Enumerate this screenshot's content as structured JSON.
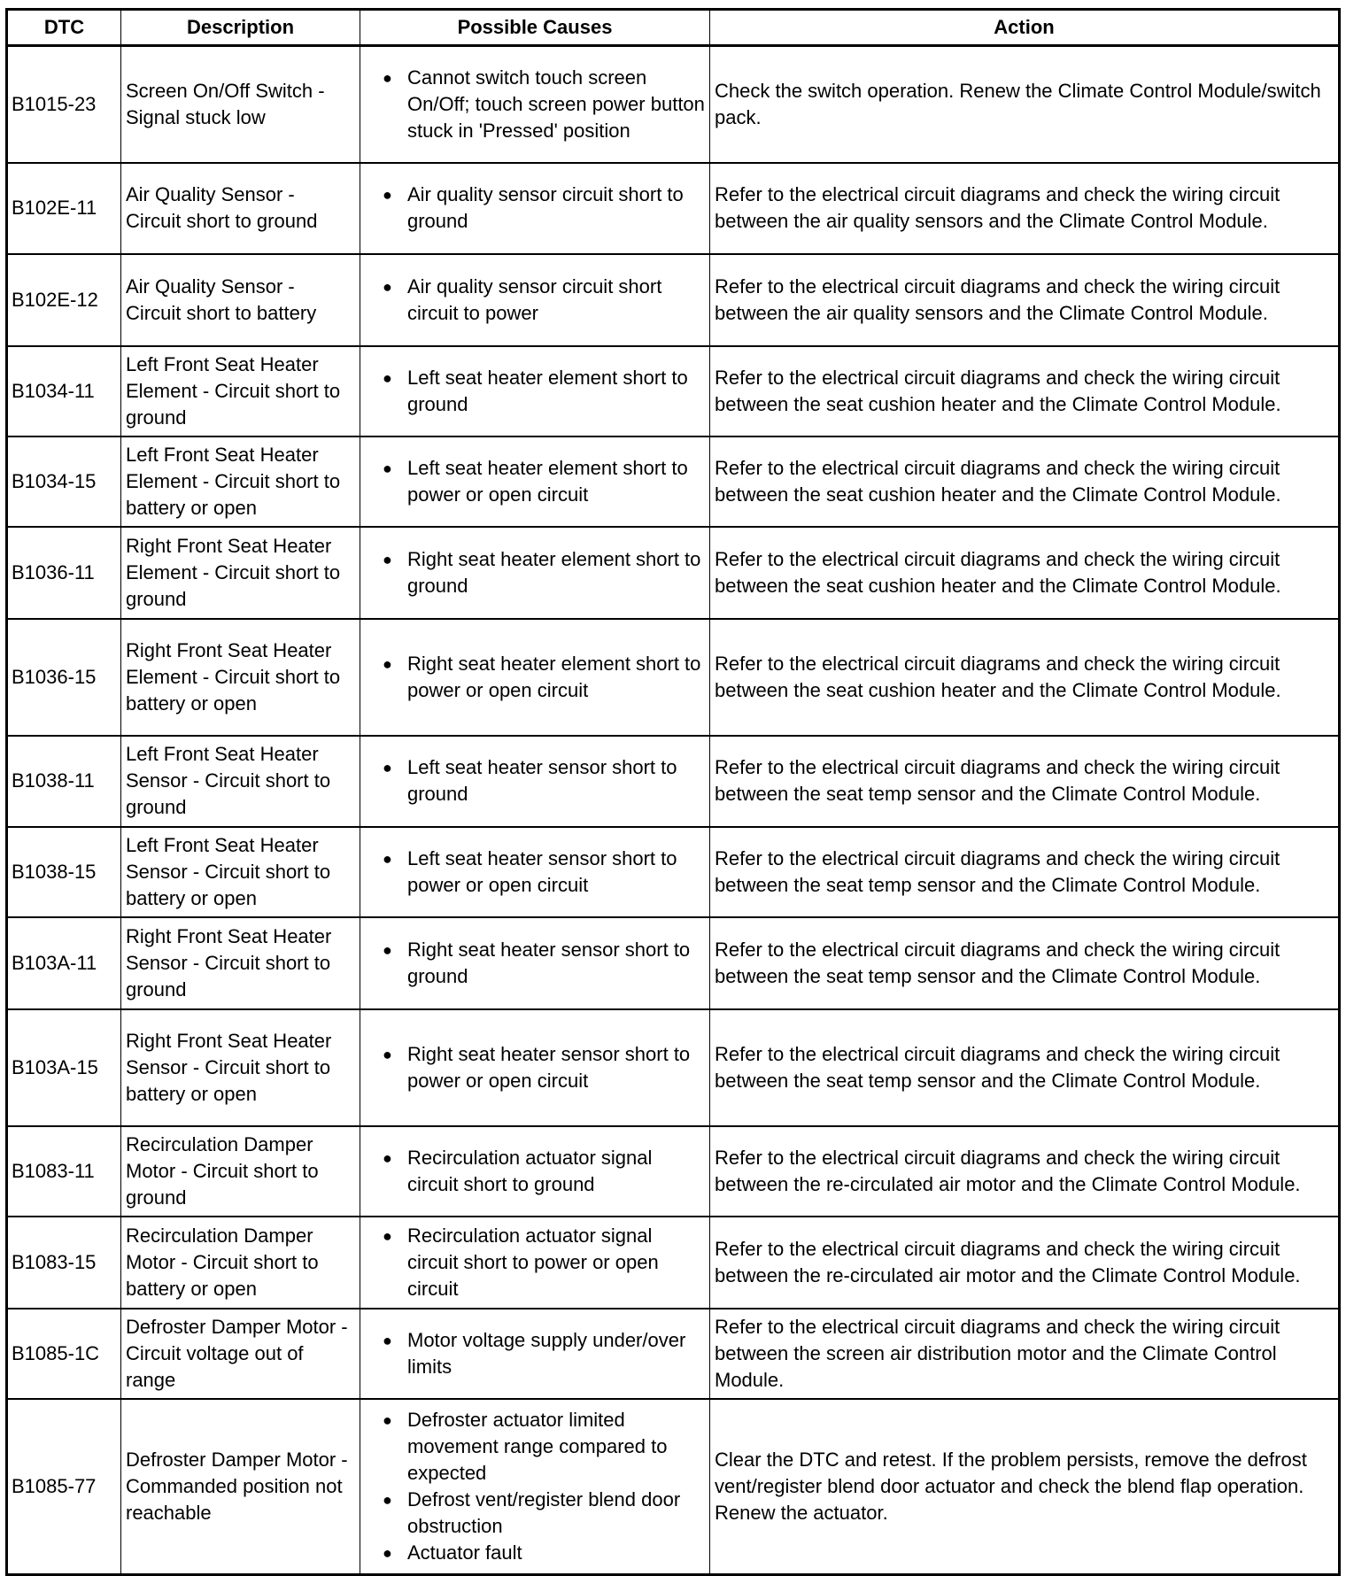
{
  "headers": [
    "DTC",
    "Description",
    "Possible Causes",
    "Action"
  ],
  "rows": [
    {
      "dtc": "B1015-23",
      "description": "Screen On/Off Switch - Signal stuck low",
      "causes": [
        "Cannot switch touch screen On/Off; touch screen power button stuck in 'Pressed' position"
      ],
      "action": "Check the switch operation. Renew the Climate Control Module/switch pack."
    },
    {
      "dtc": "B102E-11",
      "description": "Air Quality Sensor - Circuit short to ground",
      "causes": [
        "Air quality sensor circuit short to ground"
      ],
      "action": "Refer to the electrical circuit diagrams and check the wiring circuit between the air quality sensors and the Climate Control Module."
    },
    {
      "dtc": "B102E-12",
      "description": "Air Quality Sensor - Circuit short to battery",
      "causes": [
        "Air quality sensor circuit short circuit to power"
      ],
      "action": "Refer to the electrical circuit diagrams and check the wiring circuit between the air quality sensors and the Climate Control Module."
    },
    {
      "dtc": "B1034-11",
      "description": "Left Front Seat Heater Element - Circuit short to ground",
      "causes": [
        "Left seat heater element short to ground"
      ],
      "action": "Refer to the electrical circuit diagrams and check the wiring circuit between the seat cushion heater and the Climate Control Module."
    },
    {
      "dtc": "B1034-15",
      "description": "Left Front Seat Heater Element - Circuit short to battery or open",
      "causes": [
        "Left seat heater element short to power or open circuit"
      ],
      "action": "Refer to the electrical circuit diagrams and check the wiring circuit between the seat cushion heater and the Climate Control Module."
    },
    {
      "dtc": "B1036-11",
      "description": "Right Front Seat Heater Element - Circuit short to ground",
      "causes": [
        "Right seat heater element short to ground"
      ],
      "action": "Refer to the electrical circuit diagrams and check the wiring circuit between the seat cushion heater and the Climate Control Module."
    },
    {
      "dtc": "B1036-15",
      "description": "Right Front Seat Heater Element - Circuit short to battery or open",
      "causes": [
        "Right seat heater element short to power or open circuit"
      ],
      "action": "Refer to the electrical circuit diagrams and check the wiring circuit between the seat cushion heater and the Climate Control Module."
    },
    {
      "dtc": "B1038-11",
      "description": "Left Front Seat Heater Sensor - Circuit short to ground",
      "causes": [
        "Left seat heater sensor short to ground"
      ],
      "action": "Refer to the electrical circuit diagrams and check the wiring circuit between the seat temp sensor and the Climate Control Module."
    },
    {
      "dtc": "B1038-15",
      "description": "Left Front Seat Heater Sensor - Circuit short to battery or open",
      "causes": [
        "Left seat heater sensor short to power or open circuit"
      ],
      "action": "Refer to the electrical circuit diagrams and check the wiring circuit between the seat temp sensor and the Climate Control Module."
    },
    {
      "dtc": "B103A-11",
      "description": "Right Front Seat Heater Sensor - Circuit short to ground",
      "causes": [
        "Right seat heater sensor short to ground"
      ],
      "action": "Refer to the electrical circuit diagrams and check the wiring circuit between the seat temp sensor and the Climate Control Module."
    },
    {
      "dtc": "B103A-15",
      "description": "Right Front Seat Heater Sensor - Circuit short to battery or open",
      "causes": [
        "Right seat heater sensor short to power or open circuit"
      ],
      "action": "Refer to the electrical circuit diagrams and check the wiring circuit between the seat temp sensor and the Climate Control Module."
    },
    {
      "dtc": "B1083-11",
      "description": "Recirculation Damper Motor - Circuit short to ground",
      "causes": [
        "Recirculation actuator signal circuit short to ground"
      ],
      "action": "Refer to the electrical circuit diagrams and check the wiring circuit between the re-circulated air motor and the Climate Control Module."
    },
    {
      "dtc": "B1083-15",
      "description": "Recirculation Damper Motor - Circuit short to battery or open",
      "causes": [
        "Recirculation actuator signal circuit short to power or open circuit"
      ],
      "action": "Refer to the electrical circuit diagrams and check the wiring circuit between the re-circulated air motor and the Climate Control Module."
    },
    {
      "dtc": "B1085-1C",
      "description": "Defroster Damper Motor - Circuit voltage out of range",
      "causes": [
        "Motor voltage supply under/over limits"
      ],
      "action": "Refer to the electrical circuit diagrams and check the wiring circuit between the screen air distribution motor and the Climate Control Module."
    },
    {
      "dtc": "B1085-77",
      "description": "Defroster Damper Motor - Commanded position not reachable",
      "causes": [
        "Defroster actuator limited movement range compared to expected",
        "Defrost vent/register blend door obstruction",
        "Actuator fault"
      ],
      "action": "Clear the DTC and retest. If the problem persists, remove the defrost vent/register blend door actuator and check the blend flap operation. Renew the actuator."
    }
  ]
}
